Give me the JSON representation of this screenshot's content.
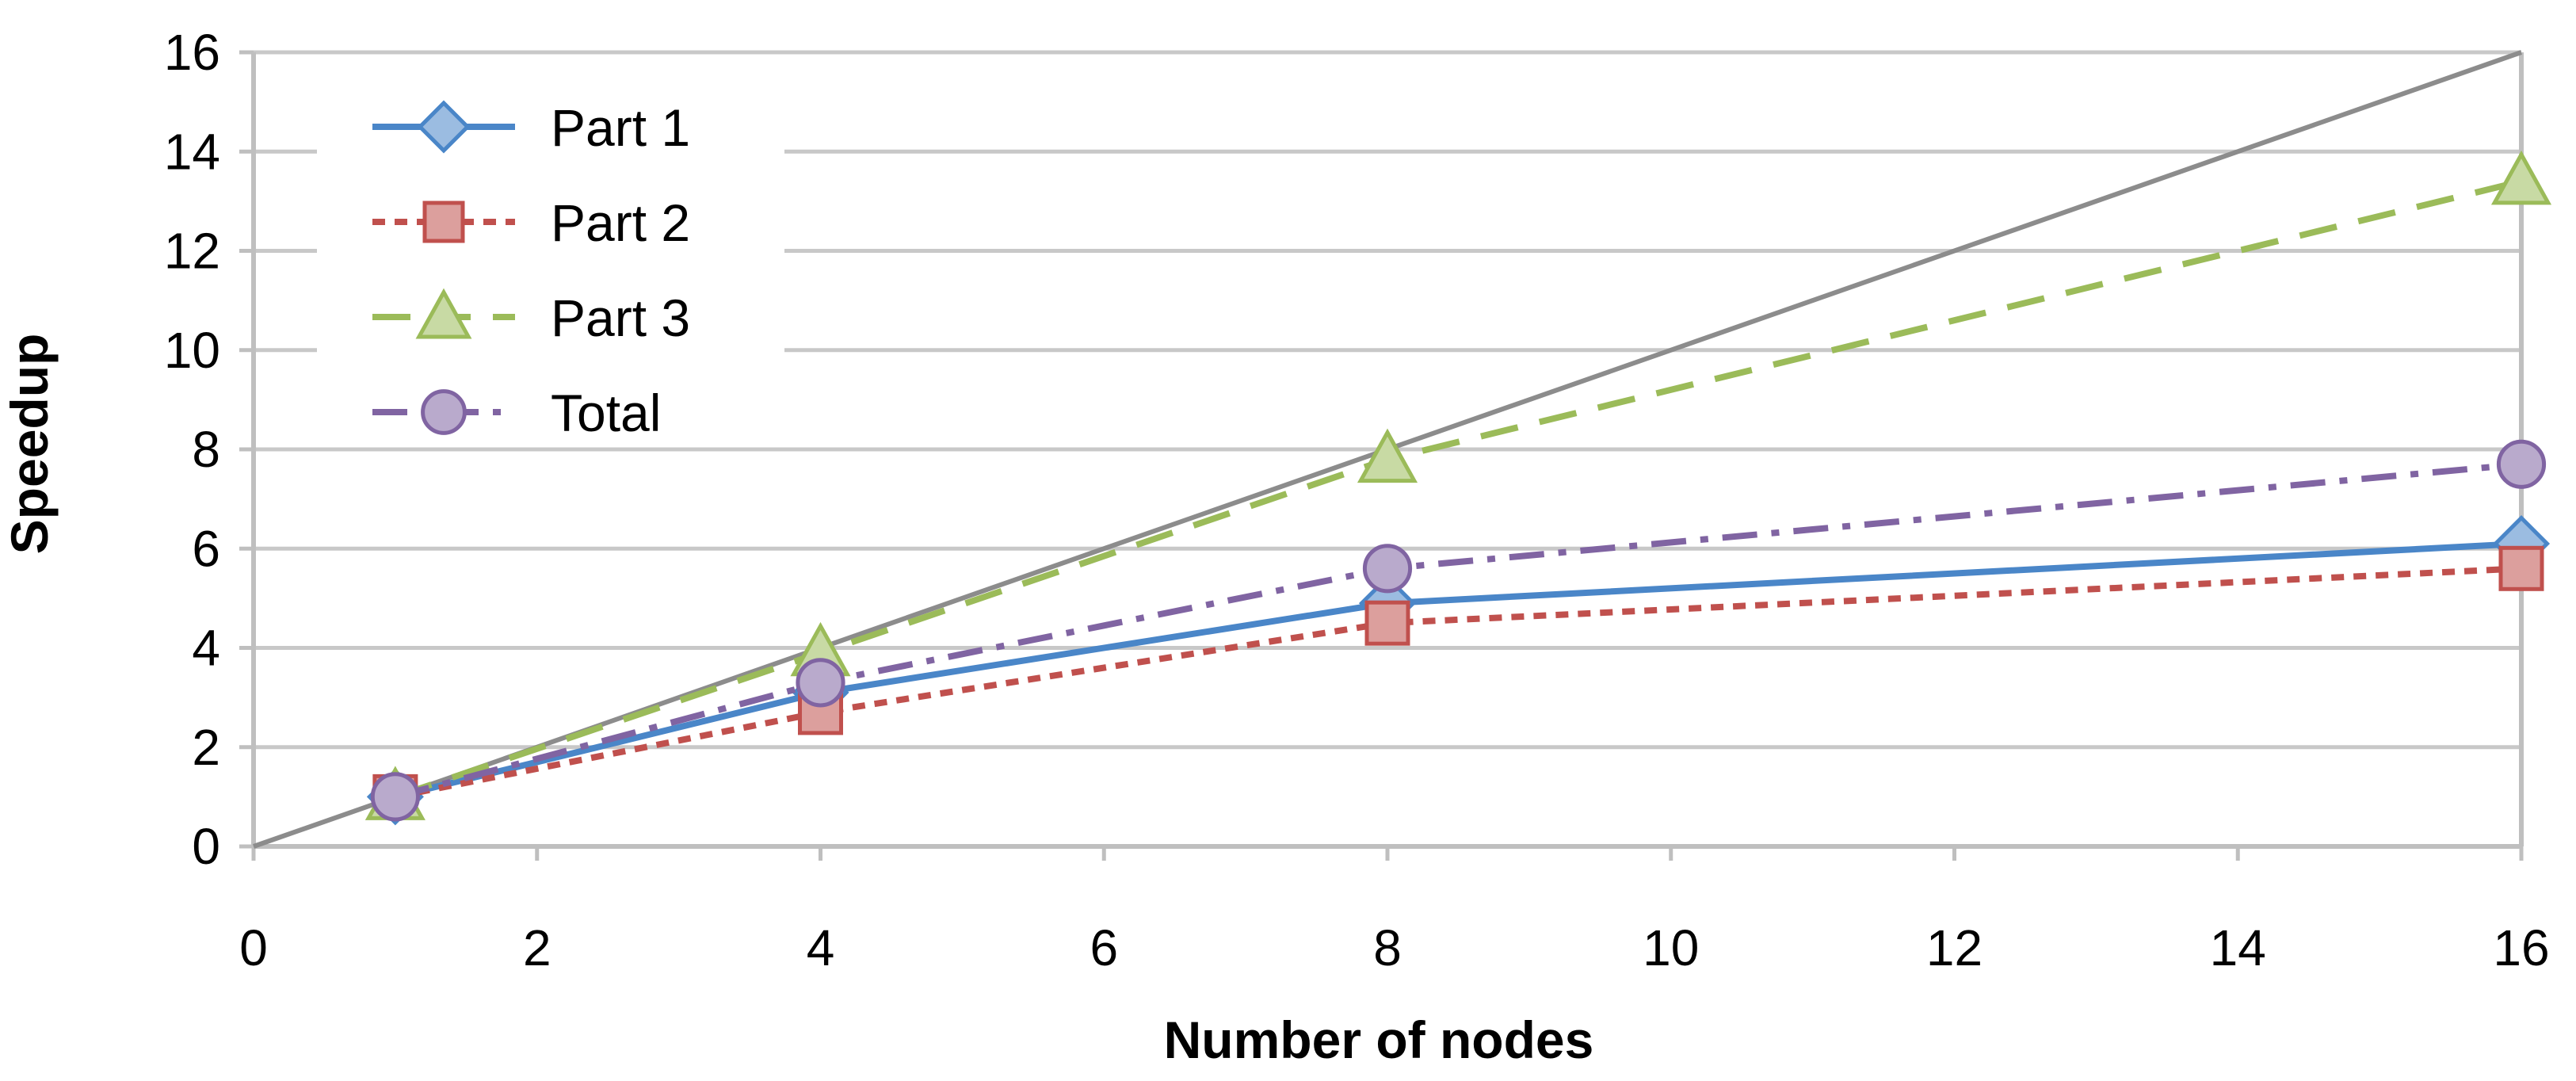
{
  "chart_data": {
    "type": "line",
    "title": "",
    "xlabel": "Number of nodes",
    "ylabel": "Speedup",
    "xlim": [
      0,
      16
    ],
    "ylim": [
      0,
      16
    ],
    "xticks": [
      "0",
      "2",
      "4",
      "6",
      "8",
      "10",
      "12",
      "14",
      "16"
    ],
    "yticks": [
      "0",
      "2",
      "4",
      "6",
      "8",
      "10",
      "12",
      "14",
      "16"
    ],
    "grid": "horizontal",
    "legend_position": "top-left",
    "ideal_line": {
      "x": [
        0,
        16
      ],
      "y": [
        0,
        16
      ],
      "color": "#8c8c8c"
    },
    "series": [
      {
        "name": "Part 1",
        "x": [
          1,
          4,
          8,
          16
        ],
        "y": [
          1.0,
          3.1,
          4.9,
          6.1
        ],
        "color": "#4a86c8",
        "marker": "diamond",
        "dash": "solid"
      },
      {
        "name": "Part 2",
        "x": [
          1,
          4,
          8,
          16
        ],
        "y": [
          1.0,
          2.7,
          4.5,
          5.6
        ],
        "color": "#c0504d",
        "marker": "square",
        "dash": "dot"
      },
      {
        "name": "Part 3",
        "x": [
          1,
          4,
          8,
          16
        ],
        "y": [
          1.0,
          3.9,
          7.8,
          13.4
        ],
        "color": "#9bbb59",
        "marker": "triangle",
        "dash": "dash"
      },
      {
        "name": "Total",
        "x": [
          1,
          4,
          8,
          16
        ],
        "y": [
          1.0,
          3.3,
          5.6,
          7.7
        ],
        "color": "#8064a2",
        "marker": "circle",
        "dash": "dashdot"
      }
    ]
  }
}
